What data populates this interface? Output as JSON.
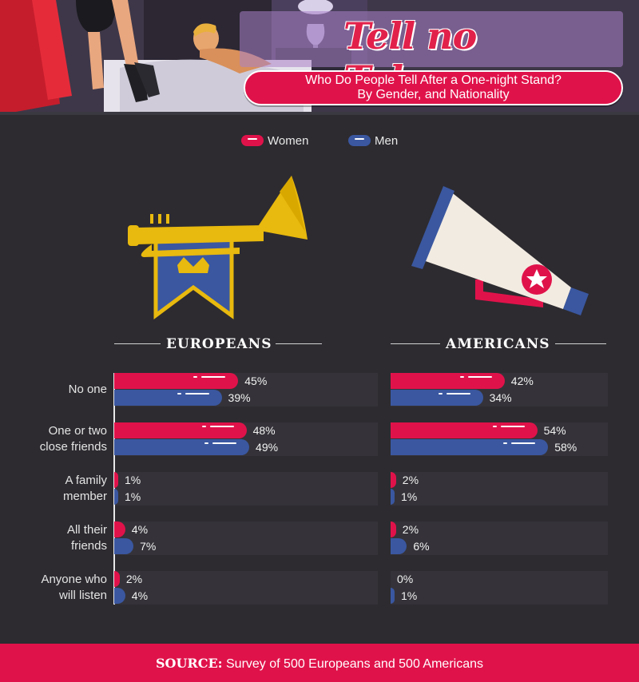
{
  "header": {
    "title": "Tell no Tales",
    "subtitle_line1": "Who Do People Tell After a One-night Stand?",
    "subtitle_line2": "By Gender, and Nationality"
  },
  "legend": [
    {
      "label": "Women",
      "color": "#e0124a"
    },
    {
      "label": "Men",
      "color": "#3a57a0"
    }
  ],
  "illustrations": {
    "europe_icon": "trumpet-with-crown-banner-icon",
    "america_icon": "megaphone-with-star-icon",
    "header_icon": "bedroom-scene-illustration"
  },
  "chart_data": [
    {
      "type": "bar",
      "title": "EUROPEANS",
      "categories": [
        [
          "No one"
        ],
        [
          "One or two",
          "close friends"
        ],
        [
          "A family",
          "member"
        ],
        [
          "All their",
          "friends"
        ],
        [
          "Anyone who",
          "will listen"
        ]
      ],
      "series": [
        {
          "name": "Women",
          "color": "#e0124a",
          "values": [
            45,
            48,
            1,
            4,
            2
          ]
        },
        {
          "name": "Men",
          "color": "#3a57a0",
          "values": [
            39,
            49,
            1,
            7,
            4
          ]
        }
      ],
      "unit": "%"
    },
    {
      "type": "bar",
      "title": "AMERICANS",
      "categories": [
        [
          "No one"
        ],
        [
          "One or two",
          "close friends"
        ],
        [
          "A family",
          "member"
        ],
        [
          "All their",
          "friends"
        ],
        [
          "Anyone who",
          "will listen"
        ]
      ],
      "series": [
        {
          "name": "Women",
          "color": "#e0124a",
          "values": [
            42,
            54,
            2,
            2,
            0
          ]
        },
        {
          "name": "Men",
          "color": "#3a57a0",
          "values": [
            34,
            58,
            1,
            6,
            1
          ]
        }
      ],
      "unit": "%"
    }
  ],
  "footer": {
    "label": "SOURCE:",
    "text": " Survey of 500 Europeans and 500 Americans"
  }
}
